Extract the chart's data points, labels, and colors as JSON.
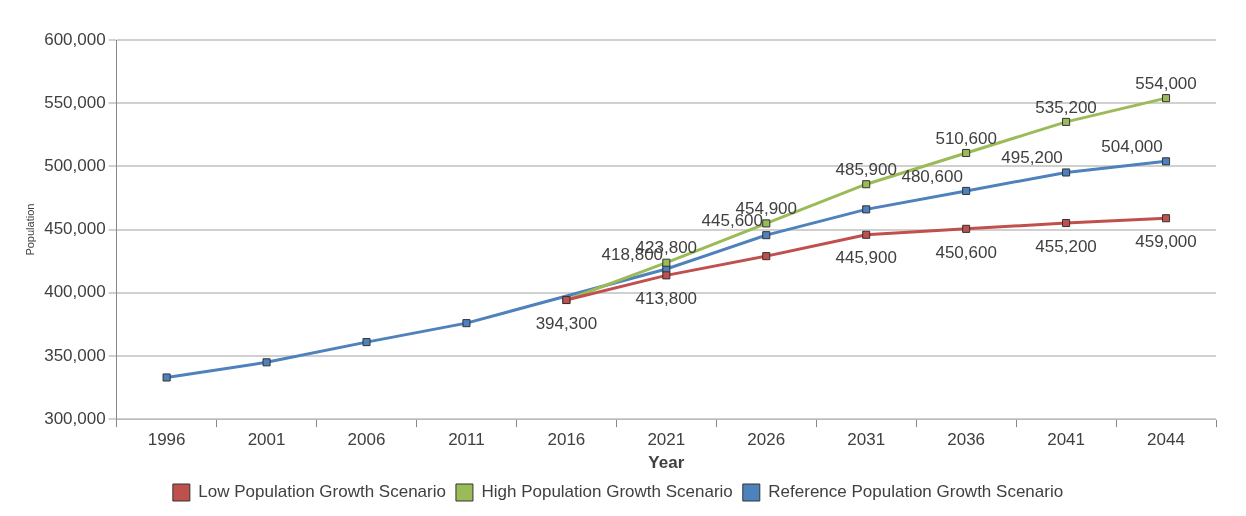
{
  "chart_data": {
    "type": "line",
    "xlabel": "Year",
    "ylabel": "Population",
    "categories": [
      "1996",
      "2001",
      "2006",
      "2011",
      "2016",
      "2021",
      "2026",
      "2031",
      "2036",
      "2041",
      "2044"
    ],
    "series": [
      {
        "name": "Low Population Growth Scenario",
        "color": "#c0504d",
        "values": [
          null,
          null,
          null,
          null,
          394300,
          413800,
          429000,
          445900,
          450600,
          455200,
          459000
        ],
        "value_labels": [
          null,
          null,
          null,
          null,
          "394,300",
          "413,800",
          null,
          "445,900",
          "450,600",
          "455,200",
          "459,000"
        ]
      },
      {
        "name": "High Population Growth Scenario",
        "color": "#9bbb59",
        "values": [
          null,
          null,
          null,
          null,
          394300,
          423800,
          454900,
          485900,
          510600,
          535200,
          554000
        ],
        "value_labels": [
          null,
          null,
          null,
          null,
          null,
          "423,800",
          "454,900",
          "485,900",
          "510,600",
          "535,200",
          "554,000"
        ]
      },
      {
        "name": "Reference Population Growth Scenario",
        "color": "#4f81bd",
        "values": [
          333000,
          345000,
          361000,
          376000,
          null,
          418800,
          445600,
          466000,
          480600,
          495200,
          504000
        ],
        "value_labels": [
          null,
          null,
          null,
          null,
          null,
          "418,800",
          "445,600",
          null,
          "480,600",
          "495,200",
          "504,000"
        ]
      }
    ],
    "ylim": [
      300000,
      600000
    ],
    "yticks": [
      {
        "value": 300000,
        "label": "300,000"
      },
      {
        "value": 350000,
        "label": "350,000"
      },
      {
        "value": 400000,
        "label": "400,000"
      },
      {
        "value": 450000,
        "label": "450,000"
      },
      {
        "value": 500000,
        "label": "500,000"
      },
      {
        "value": 550000,
        "label": "550,000"
      },
      {
        "value": 600000,
        "label": "600,000"
      }
    ],
    "grid": "y",
    "legend": "bottom",
    "marker": "square",
    "line_style": "solid"
  }
}
